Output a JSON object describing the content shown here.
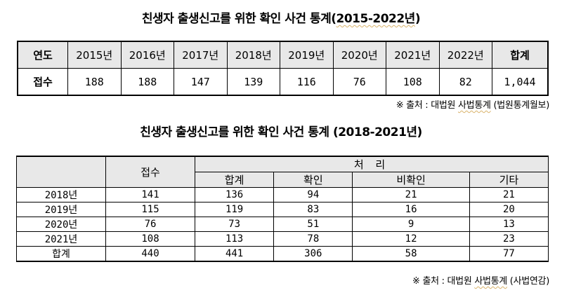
{
  "title1": {
    "prefix": "친생자 출생신고를 위한 확인 사건 통계(",
    "range": "2015-2022년",
    "suffix": ")"
  },
  "table1": {
    "header_label": "연도",
    "years": [
      "2015년",
      "2016년",
      "2017년",
      "2018년",
      "2019년",
      "2020년",
      "2021년",
      "2022년"
    ],
    "total_label": "합계",
    "row_label": "접수",
    "values": [
      "188",
      "188",
      "147",
      "139",
      "116",
      "76",
      "108",
      "82"
    ],
    "total_value": "1,044"
  },
  "note1": {
    "prefix": "※ 출처 : 대법원 ",
    "source": "사법통계",
    "suffix": " (법원통계월보)"
  },
  "title2": {
    "text": "친생자 출생신고를 위한 확인 사건 통계 (2018-2021년)"
  },
  "table2": {
    "col_received": "접수",
    "group_header": "처 리",
    "sub_headers": [
      "합계",
      "확인",
      "비확인",
      "기타"
    ],
    "rows": [
      {
        "label": "2018년",
        "received": "141",
        "total": "136",
        "confirmed": "94",
        "unconfirmed": "21",
        "other": "21"
      },
      {
        "label": "2019년",
        "received": "115",
        "total": "119",
        "confirmed": "83",
        "unconfirmed": "16",
        "other": "20"
      },
      {
        "label": "2020년",
        "received": "76",
        "total": "73",
        "confirmed": "51",
        "unconfirmed": "9",
        "other": "13"
      },
      {
        "label": "2021년",
        "received": "108",
        "total": "113",
        "confirmed": "78",
        "unconfirmed": "12",
        "other": "23"
      }
    ],
    "sum_row": {
      "label": "합계",
      "received": "440",
      "total": "441",
      "confirmed": "306",
      "unconfirmed": "58",
      "other": "77"
    }
  },
  "note2": {
    "prefix": "※ 출처 : 대법원 ",
    "source": "사법통계",
    "suffix": " (사법연감)"
  }
}
